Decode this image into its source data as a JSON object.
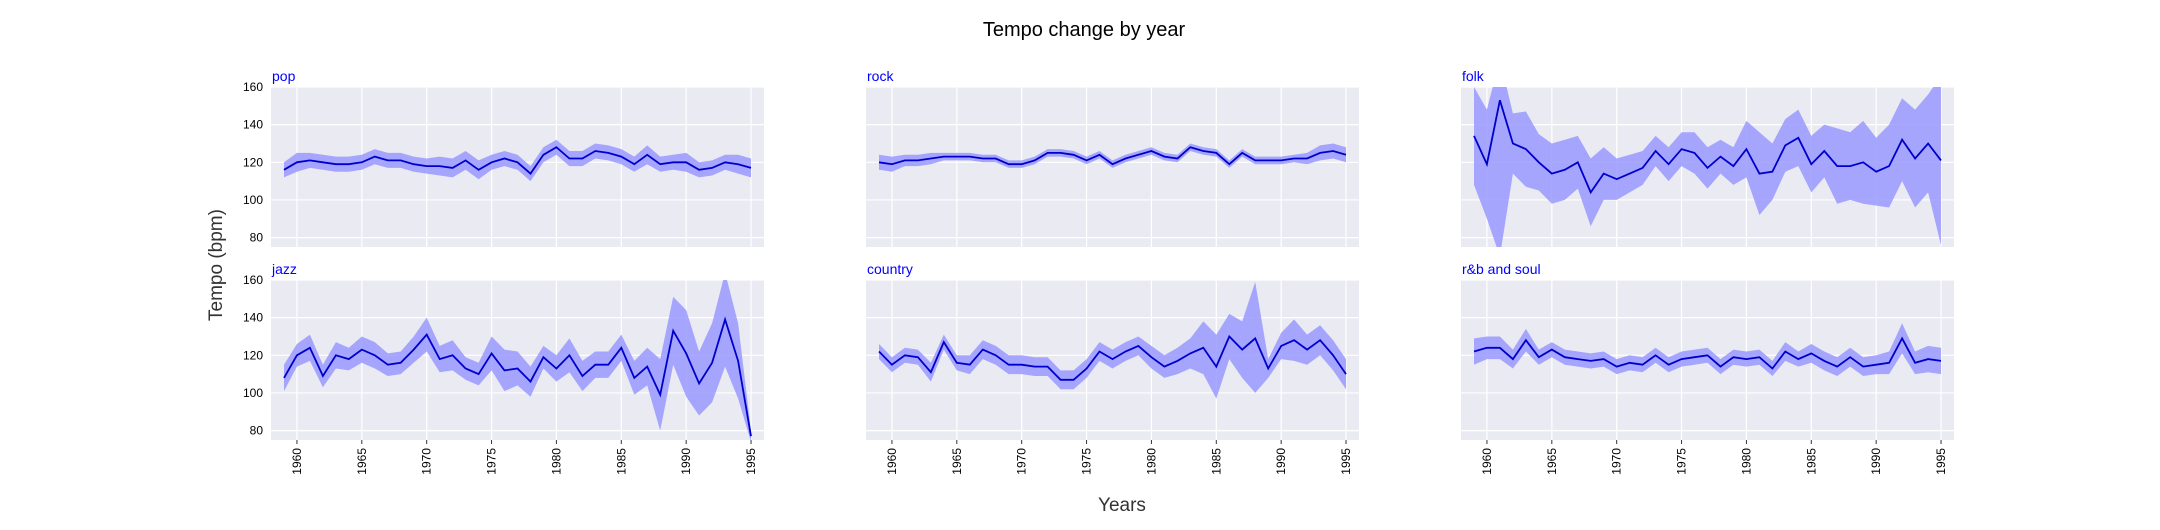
{
  "figure": {
    "title": "Tempo change by year",
    "xlabel": "Years",
    "ylabel": "Tempo (bpm)"
  },
  "colors": {
    "line": "#0000cc",
    "band": "#9999ff",
    "panel_bg": "#eaeaf2",
    "grid": "#ffffff",
    "panel_title": "#0000ff",
    "text": "#000000"
  },
  "chart_data": [
    {
      "type": "line",
      "title": "pop",
      "xlim": [
        1958,
        1996
      ],
      "ylim": [
        75,
        160
      ],
      "yticks": [
        80,
        100,
        120,
        140,
        160
      ],
      "xticks": [
        1960,
        1965,
        1970,
        1975,
        1980,
        1985,
        1990,
        1995
      ],
      "grid": true,
      "x": [
        1959,
        1960,
        1961,
        1962,
        1963,
        1964,
        1965,
        1966,
        1967,
        1968,
        1969,
        1970,
        1971,
        1972,
        1973,
        1974,
        1975,
        1976,
        1977,
        1978,
        1979,
        1980,
        1981,
        1982,
        1983,
        1984,
        1985,
        1986,
        1987,
        1988,
        1989,
        1990,
        1991,
        1992,
        1993,
        1994,
        1995
      ],
      "y": [
        116,
        120,
        121,
        120,
        119,
        119,
        120,
        123,
        121,
        121,
        119,
        118,
        118,
        117,
        121,
        116,
        120,
        122,
        120,
        114,
        124,
        128,
        122,
        122,
        126,
        125,
        123,
        119,
        124,
        119,
        120,
        120,
        116,
        117,
        120,
        119,
        117
      ],
      "lower": [
        112,
        115,
        117,
        116,
        115,
        115,
        116,
        119,
        117,
        117,
        115,
        114,
        113,
        112,
        116,
        111,
        116,
        118,
        116,
        110,
        120,
        124,
        118,
        118,
        122,
        121,
        119,
        115,
        119,
        115,
        116,
        115,
        112,
        113,
        116,
        114,
        112
      ],
      "upper": [
        120,
        125,
        125,
        124,
        123,
        123,
        124,
        127,
        125,
        125,
        123,
        122,
        123,
        122,
        126,
        121,
        124,
        126,
        124,
        118,
        128,
        132,
        126,
        126,
        130,
        129,
        127,
        123,
        129,
        123,
        124,
        125,
        120,
        121,
        124,
        124,
        122
      ]
    },
    {
      "type": "line",
      "title": "rock",
      "xlim": [
        1958,
        1996
      ],
      "ylim": [
        75,
        160
      ],
      "yticks": [
        80,
        100,
        120,
        140,
        160
      ],
      "xticks": [
        1960,
        1965,
        1970,
        1975,
        1980,
        1985,
        1990,
        1995
      ],
      "grid": true,
      "x": [
        1959,
        1960,
        1961,
        1962,
        1963,
        1964,
        1965,
        1966,
        1967,
        1968,
        1969,
        1970,
        1971,
        1972,
        1973,
        1974,
        1975,
        1976,
        1977,
        1978,
        1979,
        1980,
        1981,
        1982,
        1983,
        1984,
        1985,
        1986,
        1987,
        1988,
        1989,
        1990,
        1991,
        1992,
        1993,
        1994,
        1995
      ],
      "y": [
        120,
        119,
        121,
        121,
        122,
        123,
        123,
        123,
        122,
        122,
        119,
        119,
        121,
        125,
        125,
        124,
        121,
        124,
        119,
        122,
        124,
        126,
        123,
        122,
        128,
        126,
        125,
        119,
        125,
        121,
        121,
        121,
        122,
        122,
        125,
        126,
        124
      ],
      "lower": [
        116,
        115,
        118,
        118,
        119,
        121,
        121,
        121,
        120,
        120,
        117,
        117,
        119,
        123,
        123,
        122,
        119,
        122,
        117,
        120,
        122,
        124,
        121,
        120,
        126,
        124,
        123,
        117,
        123,
        119,
        119,
        119,
        120,
        119,
        121,
        122,
        120
      ],
      "upper": [
        124,
        123,
        124,
        124,
        125,
        125,
        125,
        125,
        124,
        124,
        121,
        121,
        123,
        127,
        127,
        126,
        123,
        126,
        121,
        124,
        126,
        128,
        125,
        124,
        130,
        128,
        127,
        121,
        127,
        123,
        123,
        123,
        124,
        125,
        129,
        130,
        128
      ]
    },
    {
      "type": "line",
      "title": "folk",
      "xlim": [
        1958,
        1996
      ],
      "ylim": [
        75,
        160
      ],
      "yticks": [
        80,
        100,
        120,
        140,
        160
      ],
      "xticks": [
        1960,
        1965,
        1970,
        1975,
        1980,
        1985,
        1990,
        1995
      ],
      "grid": true,
      "x": [
        1959,
        1960,
        1961,
        1962,
        1963,
        1964,
        1965,
        1966,
        1967,
        1968,
        1969,
        1970,
        1971,
        1972,
        1973,
        1974,
        1975,
        1976,
        1977,
        1978,
        1979,
        1980,
        1981,
        1982,
        1983,
        1984,
        1985,
        1986,
        1987,
        1988,
        1989,
        1990,
        1991,
        1992,
        1993,
        1994,
        1995
      ],
      "y": [
        134,
        119,
        153,
        130,
        127,
        120,
        114,
        116,
        120,
        104,
        114,
        111,
        114,
        117,
        126,
        119,
        127,
        125,
        117,
        123,
        118,
        127,
        114,
        115,
        129,
        133,
        119,
        126,
        118,
        118,
        120,
        115,
        118,
        132,
        122,
        130,
        121
      ],
      "lower": [
        108,
        90,
        70,
        114,
        107,
        105,
        98,
        100,
        106,
        86,
        100,
        100,
        104,
        108,
        118,
        110,
        118,
        114,
        106,
        114,
        108,
        112,
        92,
        100,
        115,
        118,
        104,
        112,
        98,
        100,
        98,
        97,
        96,
        110,
        96,
        104,
        76
      ],
      "upper": [
        160,
        148,
        175,
        146,
        147,
        135,
        130,
        132,
        134,
        122,
        128,
        122,
        124,
        126,
        134,
        128,
        136,
        136,
        128,
        132,
        128,
        142,
        136,
        130,
        143,
        148,
        134,
        140,
        138,
        136,
        142,
        133,
        140,
        154,
        148,
        156,
        166
      ]
    },
    {
      "type": "line",
      "title": "jazz",
      "xlim": [
        1958,
        1996
      ],
      "ylim": [
        75,
        160
      ],
      "yticks": [
        80,
        100,
        120,
        140,
        160
      ],
      "xticks": [
        1960,
        1965,
        1970,
        1975,
        1980,
        1985,
        1990,
        1995
      ],
      "grid": true,
      "x": [
        1959,
        1960,
        1961,
        1962,
        1963,
        1964,
        1965,
        1966,
        1967,
        1968,
        1969,
        1970,
        1971,
        1972,
        1973,
        1974,
        1975,
        1976,
        1977,
        1978,
        1979,
        1980,
        1981,
        1982,
        1983,
        1984,
        1985,
        1986,
        1987,
        1988,
        1989,
        1990,
        1991,
        1992,
        1993,
        1994,
        1995
      ],
      "y": [
        108,
        120,
        124,
        109,
        120,
        118,
        123,
        120,
        115,
        116,
        123,
        131,
        118,
        120,
        113,
        110,
        121,
        112,
        113,
        106,
        119,
        113,
        120,
        109,
        115,
        115,
        124,
        108,
        114,
        99,
        133,
        121,
        105,
        116,
        139,
        117,
        77
      ],
      "lower": [
        101,
        114,
        117,
        103,
        113,
        112,
        116,
        113,
        109,
        110,
        116,
        122,
        111,
        112,
        107,
        104,
        112,
        101,
        104,
        98,
        113,
        106,
        111,
        101,
        108,
        108,
        117,
        99,
        104,
        80,
        115,
        98,
        88,
        95,
        114,
        97,
        74
      ],
      "upper": [
        115,
        126,
        131,
        115,
        127,
        124,
        130,
        127,
        121,
        122,
        130,
        140,
        125,
        128,
        119,
        116,
        130,
        123,
        122,
        114,
        125,
        120,
        129,
        117,
        122,
        122,
        131,
        117,
        124,
        118,
        151,
        144,
        122,
        137,
        164,
        137,
        80
      ]
    },
    {
      "type": "line",
      "title": "country",
      "xlim": [
        1958,
        1996
      ],
      "ylim": [
        75,
        160
      ],
      "yticks": [
        80,
        100,
        120,
        140,
        160
      ],
      "xticks": [
        1960,
        1965,
        1970,
        1975,
        1980,
        1985,
        1990,
        1995
      ],
      "grid": true,
      "x": [
        1959,
        1960,
        1961,
        1962,
        1963,
        1964,
        1965,
        1966,
        1967,
        1968,
        1969,
        1970,
        1971,
        1972,
        1973,
        1974,
        1975,
        1976,
        1977,
        1978,
        1979,
        1980,
        1981,
        1982,
        1983,
        1984,
        1985,
        1986,
        1987,
        1988,
        1989,
        1990,
        1991,
        1992,
        1993,
        1994,
        1995
      ],
      "y": [
        122,
        115,
        120,
        119,
        111,
        127,
        116,
        115,
        123,
        120,
        115,
        115,
        114,
        114,
        107,
        107,
        113,
        122,
        118,
        122,
        125,
        119,
        114,
        117,
        121,
        124,
        114,
        130,
        123,
        129,
        113,
        125,
        128,
        123,
        128,
        120,
        110
      ],
      "lower": [
        118,
        111,
        116,
        115,
        106,
        123,
        112,
        110,
        118,
        115,
        110,
        110,
        109,
        109,
        102,
        102,
        108,
        117,
        113,
        117,
        120,
        113,
        108,
        110,
        113,
        110,
        97,
        118,
        108,
        100,
        108,
        118,
        117,
        115,
        120,
        112,
        102
      ],
      "upper": [
        126,
        119,
        124,
        123,
        116,
        131,
        120,
        120,
        128,
        125,
        120,
        120,
        119,
        119,
        112,
        112,
        118,
        127,
        123,
        127,
        130,
        125,
        120,
        124,
        129,
        138,
        131,
        142,
        138,
        159,
        118,
        132,
        139,
        131,
        136,
        128,
        118
      ]
    },
    {
      "type": "line",
      "title": "r&b and soul",
      "xlim": [
        1958,
        1996
      ],
      "ylim": [
        75,
        160
      ],
      "yticks": [
        80,
        100,
        120,
        140,
        160
      ],
      "xticks": [
        1960,
        1965,
        1970,
        1975,
        1980,
        1985,
        1990,
        1995
      ],
      "grid": true,
      "x": [
        1959,
        1960,
        1961,
        1962,
        1963,
        1964,
        1965,
        1966,
        1967,
        1968,
        1969,
        1970,
        1971,
        1972,
        1973,
        1974,
        1975,
        1976,
        1977,
        1978,
        1979,
        1980,
        1981,
        1982,
        1983,
        1984,
        1985,
        1986,
        1987,
        1988,
        1989,
        1990,
        1991,
        1992,
        1993,
        1994,
        1995
      ],
      "y": [
        122,
        124,
        124,
        118,
        128,
        119,
        123,
        119,
        118,
        117,
        118,
        114,
        116,
        115,
        120,
        115,
        118,
        119,
        120,
        114,
        119,
        118,
        119,
        113,
        122,
        118,
        121,
        117,
        114,
        119,
        114,
        115,
        116,
        129,
        116,
        118,
        117
      ],
      "lower": [
        115,
        118,
        118,
        113,
        122,
        115,
        119,
        115,
        114,
        113,
        114,
        110,
        112,
        111,
        116,
        111,
        114,
        115,
        116,
        110,
        115,
        114,
        115,
        109,
        117,
        114,
        116,
        112,
        109,
        114,
        109,
        110,
        110,
        121,
        110,
        111,
        110
      ],
      "upper": [
        129,
        130,
        130,
        123,
        134,
        123,
        127,
        123,
        122,
        121,
        122,
        118,
        120,
        119,
        124,
        119,
        122,
        123,
        124,
        118,
        123,
        122,
        123,
        117,
        127,
        122,
        126,
        122,
        119,
        124,
        119,
        120,
        122,
        137,
        122,
        125,
        124
      ]
    }
  ]
}
